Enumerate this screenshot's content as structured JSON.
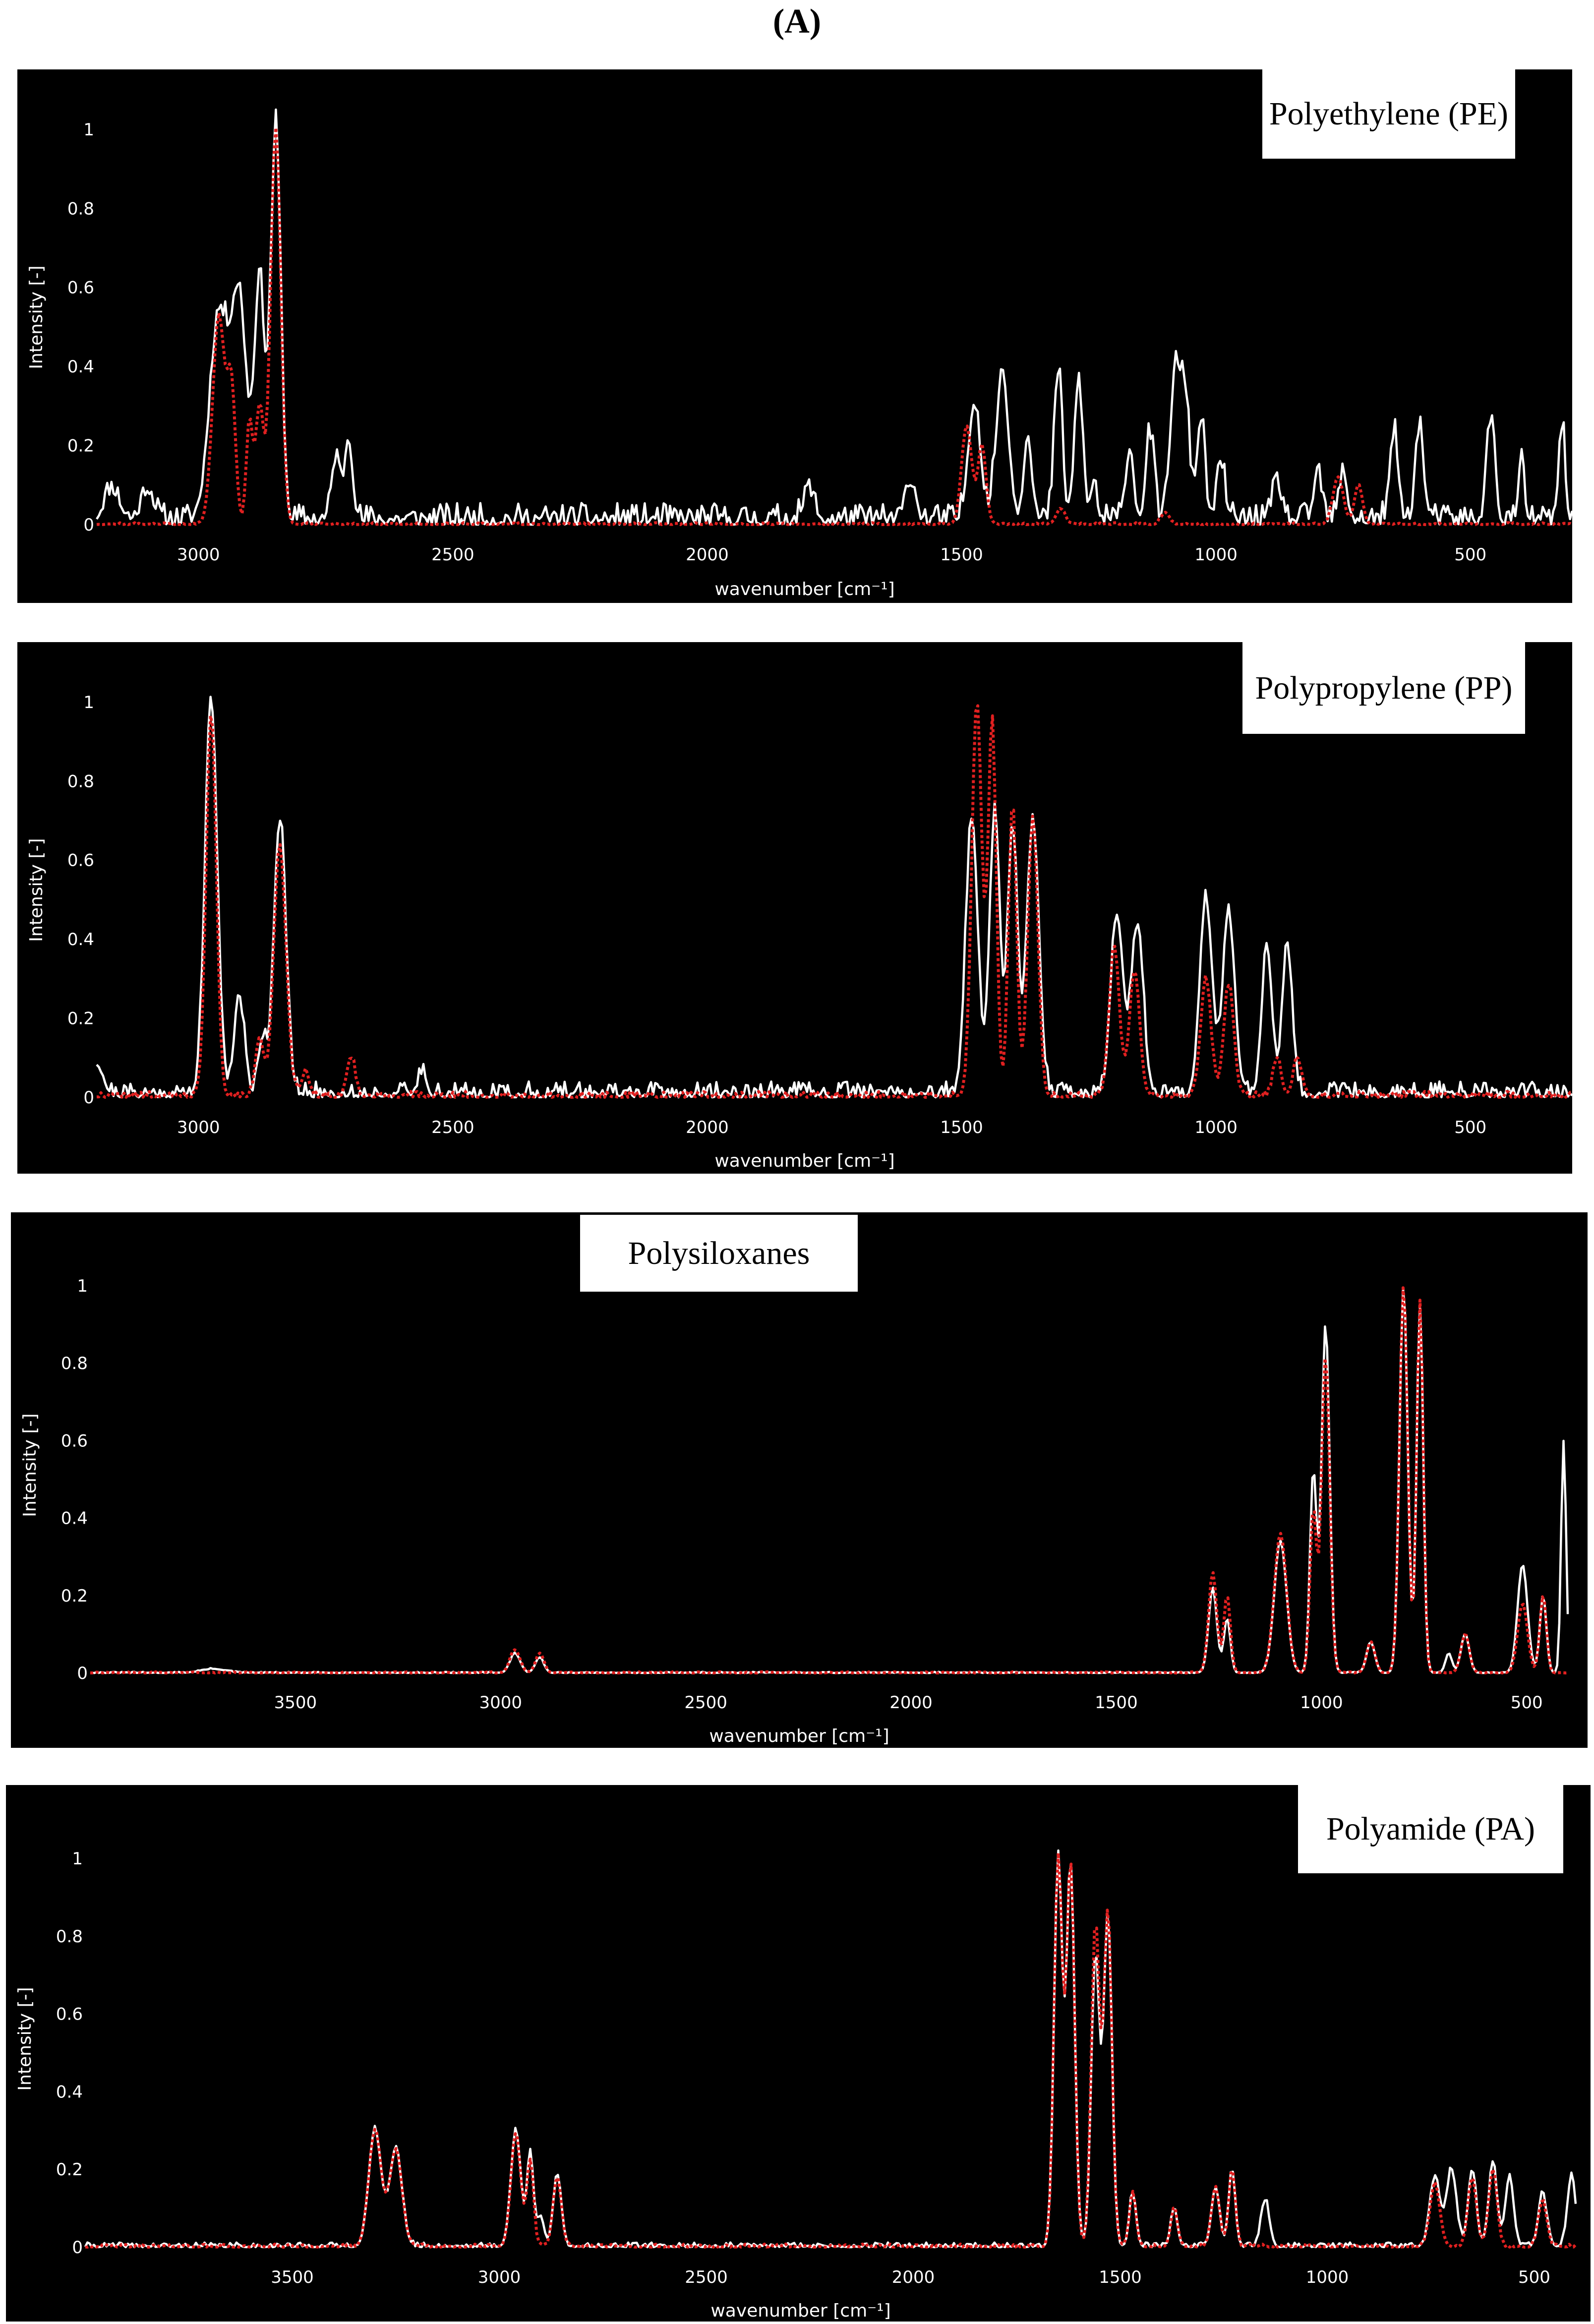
{
  "figure_label": "(A)",
  "chart_data": [
    {
      "type": "line",
      "title": "Polyethylene (PE)",
      "xlabel": "wavenumber [cm⁻¹]",
      "ylabel": "Intensity [-]",
      "xlim": [
        3200,
        300
      ],
      "ylim": [
        0,
        1.05
      ],
      "x_ticks": [
        3000,
        2500,
        2000,
        1500,
        1000,
        500
      ],
      "y_ticks": [
        0,
        0.2,
        0.4,
        0.6,
        0.8,
        1
      ],
      "y_tick_labels": [
        "0",
        "0.2",
        "0.4",
        "0.6",
        "0.8",
        "1"
      ],
      "series": [
        {
          "color": "#ffffff",
          "style": "solid",
          "peaks": [
            [
              3170,
              0.08,
              15
            ],
            [
              3100,
              0.08,
              12
            ],
            [
              2960,
              0.52,
              18
            ],
            [
              2920,
              0.55,
              15
            ],
            [
              2848,
              1.0,
              10
            ],
            [
              2880,
              0.6,
              10
            ],
            [
              2730,
              0.16,
              8
            ],
            [
              2705,
              0.21,
              8
            ],
            [
              1800,
              0.08,
              10
            ],
            [
              1600,
              0.1,
              10
            ],
            [
              1475,
              0.3,
              12
            ],
            [
              1420,
              0.38,
              12
            ],
            [
              1370,
              0.22,
              8
            ],
            [
              1310,
              0.38,
              8
            ],
            [
              1270,
              0.36,
              8
            ],
            [
              1240,
              0.1,
              6
            ],
            [
              1170,
              0.18,
              8
            ],
            [
              1130,
              0.22,
              8
            ],
            [
              1080,
              0.38,
              10
            ],
            [
              1060,
              0.3,
              8
            ],
            [
              1030,
              0.26,
              8
            ],
            [
              990,
              0.14,
              8
            ],
            [
              880,
              0.1,
              8
            ],
            [
              800,
              0.12,
              8
            ],
            [
              750,
              0.12,
              8
            ],
            [
              650,
              0.22,
              8
            ],
            [
              600,
              0.24,
              8
            ],
            [
              460,
              0.26,
              8
            ],
            [
              400,
              0.14,
              6
            ],
            [
              320,
              0.24,
              6
            ]
          ],
          "noise": 0.055,
          "seed": 11
        },
        {
          "color": "#e02020",
          "style": "dotted",
          "peaks": [
            [
              2960,
              0.53,
              12
            ],
            [
              2935,
              0.33,
              8
            ],
            [
              2900,
              0.26,
              6
            ],
            [
              2848,
              1.0,
              10
            ],
            [
              2880,
              0.3,
              8
            ],
            [
              1490,
              0.25,
              10
            ],
            [
              1460,
              0.2,
              8
            ],
            [
              1305,
              0.04,
              8
            ],
            [
              1100,
              0.03,
              8
            ],
            [
              760,
              0.12,
              10
            ],
            [
              720,
              0.1,
              8
            ]
          ],
          "noise": 0.005,
          "seed": 12
        }
      ]
    },
    {
      "type": "line",
      "title": "Polypropylene (PP)",
      "xlabel": "wavenumber [cm⁻¹]",
      "ylabel": "Intensity [-]",
      "xlim": [
        3200,
        300
      ],
      "ylim": [
        0,
        1.05
      ],
      "x_ticks": [
        3000,
        2500,
        2000,
        1500,
        1000,
        500
      ],
      "y_ticks": [
        0,
        0.2,
        0.4,
        0.6,
        0.8,
        1
      ],
      "y_tick_labels": [
        "0",
        "0.2",
        "0.4",
        "0.6",
        "0.8",
        "1"
      ],
      "series": [
        {
          "color": "#ffffff",
          "style": "solid",
          "peaks": [
            [
              3200,
              0.08,
              12
            ],
            [
              2975,
              1.0,
              12
            ],
            [
              2920,
              0.25,
              10
            ],
            [
              2875,
              0.14,
              8
            ],
            [
              2840,
              0.7,
              12
            ],
            [
              2560,
              0.06,
              8
            ],
            [
              1480,
              0.7,
              12
            ],
            [
              1435,
              0.72,
              10
            ],
            [
              1400,
              0.68,
              10
            ],
            [
              1360,
              0.7,
              12
            ],
            [
              1195,
              0.46,
              12
            ],
            [
              1155,
              0.43,
              12
            ],
            [
              1020,
              0.5,
              12
            ],
            [
              975,
              0.46,
              12
            ],
            [
              900,
              0.38,
              10
            ],
            [
              860,
              0.38,
              10
            ]
          ],
          "noise": 0.04,
          "seed": 21
        },
        {
          "color": "#e02020",
          "style": "dotted",
          "peaks": [
            [
              2975,
              0.97,
              10
            ],
            [
              2880,
              0.15,
              8
            ],
            [
              2840,
              0.63,
              12
            ],
            [
              2790,
              0.06,
              8
            ],
            [
              2700,
              0.1,
              8
            ],
            [
              1470,
              1.0,
              10
            ],
            [
              1440,
              0.95,
              8
            ],
            [
              1400,
              0.74,
              8
            ],
            [
              1360,
              0.7,
              10
            ],
            [
              1200,
              0.38,
              10
            ],
            [
              1160,
              0.32,
              10
            ],
            [
              1020,
              0.3,
              10
            ],
            [
              975,
              0.28,
              10
            ],
            [
              880,
              0.1,
              8
            ],
            [
              840,
              0.1,
              8
            ]
          ],
          "noise": 0.015,
          "seed": 22
        }
      ]
    },
    {
      "type": "line",
      "title": "Polysiloxanes",
      "xlabel": "wavenumber [cm⁻¹]",
      "ylabel": "Intensity [-]",
      "xlim": [
        4000,
        400
      ],
      "ylim": [
        0,
        1.05
      ],
      "x_ticks": [
        3500,
        3000,
        2500,
        2000,
        1500,
        1000,
        500
      ],
      "y_ticks": [
        0,
        0.2,
        0.4,
        0.6,
        0.8,
        1
      ],
      "y_tick_labels": [
        "0",
        "0.2",
        "0.4",
        "0.6",
        "0.8",
        "1"
      ],
      "series": [
        {
          "color": "#ffffff",
          "style": "solid",
          "peaks": [
            [
              3700,
              0.01,
              30
            ],
            [
              2965,
              0.05,
              12
            ],
            [
              2905,
              0.04,
              10
            ],
            [
              1265,
              0.22,
              10
            ],
            [
              1230,
              0.14,
              8
            ],
            [
              1100,
              0.34,
              15
            ],
            [
              1020,
              0.52,
              8
            ],
            [
              990,
              0.9,
              10
            ],
            [
              880,
              0.08,
              10
            ],
            [
              800,
              1.0,
              10
            ],
            [
              760,
              0.95,
              8
            ],
            [
              690,
              0.05,
              8
            ],
            [
              650,
              0.1,
              10
            ],
            [
              510,
              0.28,
              12
            ],
            [
              460,
              0.2,
              8
            ],
            [
              410,
              0.6,
              6
            ]
          ],
          "noise": 0.003,
          "seed": 31
        },
        {
          "color": "#e02020",
          "style": "dotted",
          "peaks": [
            [
              2965,
              0.06,
              12
            ],
            [
              2905,
              0.05,
              10
            ],
            [
              1265,
              0.26,
              10
            ],
            [
              1230,
              0.2,
              8
            ],
            [
              1100,
              0.36,
              15
            ],
            [
              1020,
              0.42,
              8
            ],
            [
              990,
              0.82,
              10
            ],
            [
              880,
              0.08,
              10
            ],
            [
              800,
              1.0,
              10
            ],
            [
              760,
              0.96,
              8
            ],
            [
              650,
              0.1,
              10
            ],
            [
              510,
              0.18,
              12
            ],
            [
              460,
              0.2,
              8
            ]
          ],
          "noise": 0.003,
          "seed": 32
        }
      ]
    },
    {
      "type": "line",
      "title": "Polyamide (PA)",
      "xlabel": "wavenumber [cm⁻¹]",
      "ylabel": "Intensity [-]",
      "xlim": [
        4000,
        400
      ],
      "ylim": [
        0,
        1.05
      ],
      "x_ticks": [
        3500,
        3000,
        2500,
        2000,
        1500,
        1000,
        500
      ],
      "y_ticks": [
        0,
        0.2,
        0.4,
        0.6,
        0.8,
        1
      ],
      "y_tick_labels": [
        "0",
        "0.2",
        "0.4",
        "0.6",
        "0.8",
        "1"
      ],
      "series": [
        {
          "color": "#ffffff",
          "style": "solid",
          "peaks": [
            [
              3300,
              0.3,
              15
            ],
            [
              3250,
              0.25,
              15
            ],
            [
              2960,
              0.3,
              12
            ],
            [
              2925,
              0.24,
              8
            ],
            [
              2900,
              0.08,
              8
            ],
            [
              2860,
              0.18,
              10
            ],
            [
              1650,
              1.0,
              10
            ],
            [
              1620,
              0.98,
              10
            ],
            [
              1560,
              0.75,
              10
            ],
            [
              1530,
              0.85,
              10
            ],
            [
              1470,
              0.14,
              8
            ],
            [
              1370,
              0.1,
              8
            ],
            [
              1270,
              0.15,
              10
            ],
            [
              1230,
              0.2,
              8
            ],
            [
              1150,
              0.12,
              10
            ],
            [
              740,
              0.18,
              12
            ],
            [
              700,
              0.2,
              12
            ],
            [
              650,
              0.2,
              10
            ],
            [
              600,
              0.22,
              10
            ],
            [
              560,
              0.18,
              10
            ],
            [
              480,
              0.14,
              10
            ],
            [
              410,
              0.18,
              10
            ]
          ],
          "noise": 0.012,
          "seed": 41
        },
        {
          "color": "#e02020",
          "style": "dotted",
          "peaks": [
            [
              3300,
              0.3,
              15
            ],
            [
              3250,
              0.25,
              15
            ],
            [
              2960,
              0.29,
              12
            ],
            [
              2925,
              0.22,
              8
            ],
            [
              2860,
              0.18,
              10
            ],
            [
              1650,
              1.0,
              10
            ],
            [
              1620,
              0.98,
              10
            ],
            [
              1560,
              0.83,
              10
            ],
            [
              1530,
              0.86,
              10
            ],
            [
              1470,
              0.14,
              8
            ],
            [
              1370,
              0.1,
              8
            ],
            [
              1270,
              0.15,
              10
            ],
            [
              1230,
              0.2,
              8
            ],
            [
              740,
              0.16,
              12
            ],
            [
              650,
              0.18,
              10
            ],
            [
              600,
              0.2,
              10
            ],
            [
              480,
              0.12,
              10
            ]
          ],
          "noise": 0.008,
          "seed": 42
        }
      ]
    }
  ]
}
